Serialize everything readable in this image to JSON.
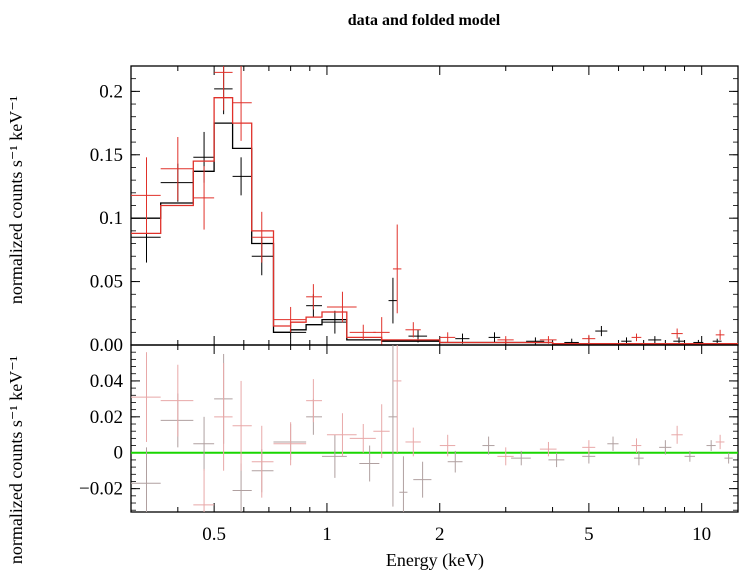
{
  "chart_data": {
    "type": "scatter",
    "title": "data and folded model",
    "xlabel": "Energy (keV)",
    "xscale": "log",
    "xlim": [
      0.3,
      12.5
    ],
    "x_ticks": [
      0.5,
      1,
      2,
      5,
      10
    ],
    "x_tick_labels": [
      "0.5",
      "1",
      "2",
      "5",
      "10"
    ],
    "top_panel": {
      "ylabel": "normalized counts s⁻¹ keV⁻¹",
      "ylim": [
        0,
        0.22
      ],
      "y_ticks": [
        0,
        0.05,
        0.1,
        0.15,
        0.2
      ],
      "y_tick_labels": [
        "0.00",
        "0.05",
        "0.1",
        "0.15",
        "0.2"
      ],
      "series": [
        {
          "color": "#000000",
          "data": [
            {
              "x": 0.33,
              "xlo": 0.3,
              "xhi": 0.36,
              "y": 0.085,
              "yerr": 0.02
            },
            {
              "x": 0.4,
              "xlo": 0.36,
              "xhi": 0.44,
              "y": 0.128,
              "yerr": 0.015
            },
            {
              "x": 0.47,
              "xlo": 0.44,
              "xhi": 0.5,
              "y": 0.148,
              "yerr": 0.02
            },
            {
              "x": 0.53,
              "xlo": 0.5,
              "xhi": 0.56,
              "y": 0.202,
              "yerr": 0.02
            },
            {
              "x": 0.59,
              "xlo": 0.56,
              "xhi": 0.63,
              "y": 0.133,
              "yerr": 0.015
            },
            {
              "x": 0.67,
              "xlo": 0.63,
              "xhi": 0.72,
              "y": 0.07,
              "yerr": 0.015
            },
            {
              "x": 0.8,
              "xlo": 0.72,
              "xhi": 0.88,
              "y": 0.01,
              "yerr": 0.006
            },
            {
              "x": 0.92,
              "xlo": 0.88,
              "xhi": 0.97,
              "y": 0.031,
              "yerr": 0.009
            },
            {
              "x": 1.05,
              "xlo": 0.97,
              "xhi": 1.13,
              "y": 0.018,
              "yerr": 0.009
            },
            {
              "x": 1.5,
              "xlo": 1.46,
              "xhi": 1.54,
              "y": 0.035,
              "yerr": 0.018
            },
            {
              "x": 1.75,
              "xlo": 1.65,
              "xhi": 1.85,
              "y": 0.007,
              "yerr": 0.005
            },
            {
              "x": 2.3,
              "xlo": 2.2,
              "xhi": 2.4,
              "y": 0.005,
              "yerr": 0.004
            },
            {
              "x": 2.8,
              "xlo": 2.7,
              "xhi": 2.9,
              "y": 0.006,
              "yerr": 0.004
            },
            {
              "x": 3.6,
              "xlo": 3.4,
              "xhi": 3.8,
              "y": 0.003,
              "yerr": 0.003
            },
            {
              "x": 4.5,
              "xlo": 4.3,
              "xhi": 4.7,
              "y": 0.002,
              "yerr": 0.003
            },
            {
              "x": 5.4,
              "xlo": 5.2,
              "xhi": 5.6,
              "y": 0.011,
              "yerr": 0.004
            },
            {
              "x": 6.3,
              "xlo": 6.1,
              "xhi": 6.5,
              "y": 0.003,
              "yerr": 0.003
            },
            {
              "x": 7.5,
              "xlo": 7.2,
              "xhi": 7.8,
              "y": 0.004,
              "yerr": 0.003
            },
            {
              "x": 8.7,
              "xlo": 8.4,
              "xhi": 9.0,
              "y": 0.003,
              "yerr": 0.003
            },
            {
              "x": 9.8,
              "xlo": 9.5,
              "xhi": 10.1,
              "y": 0.002,
              "yerr": 0.002
            },
            {
              "x": 11.0,
              "xlo": 10.7,
              "xhi": 11.3,
              "y": 0.003,
              "yerr": 0.002
            }
          ],
          "model": [
            [
              0.3,
              0.36,
              0.1
            ],
            [
              0.36,
              0.44,
              0.112
            ],
            [
              0.44,
              0.5,
              0.137
            ],
            [
              0.5,
              0.56,
              0.175
            ],
            [
              0.56,
              0.63,
              0.155
            ],
            [
              0.63,
              0.72,
              0.08
            ],
            [
              0.72,
              0.8,
              0.01
            ],
            [
              0.8,
              0.88,
              0.012
            ],
            [
              0.88,
              0.97,
              0.016
            ],
            [
              0.97,
              1.13,
              0.02
            ],
            [
              1.13,
              1.4,
              0.004
            ],
            [
              1.4,
              2.0,
              0.003
            ],
            [
              2.0,
              4.0,
              0.002
            ],
            [
              4.0,
              12.5,
              0.001
            ]
          ]
        },
        {
          "color": "#e0312a",
          "data": [
            {
              "x": 0.33,
              "xlo": 0.3,
              "xhi": 0.36,
              "y": 0.118,
              "yerr": 0.03
            },
            {
              "x": 0.4,
              "xlo": 0.36,
              "xhi": 0.44,
              "y": 0.139,
              "yerr": 0.025
            },
            {
              "x": 0.47,
              "xlo": 0.44,
              "xhi": 0.5,
              "y": 0.116,
              "yerr": 0.025
            },
            {
              "x": 0.53,
              "xlo": 0.5,
              "xhi": 0.56,
              "y": 0.215,
              "yerr": 0.03
            },
            {
              "x": 0.59,
              "xlo": 0.56,
              "xhi": 0.63,
              "y": 0.191,
              "yerr": 0.03
            },
            {
              "x": 0.67,
              "xlo": 0.63,
              "xhi": 0.72,
              "y": 0.085,
              "yerr": 0.02
            },
            {
              "x": 0.8,
              "xlo": 0.72,
              "xhi": 0.88,
              "y": 0.02,
              "yerr": 0.01
            },
            {
              "x": 0.92,
              "xlo": 0.88,
              "xhi": 0.97,
              "y": 0.038,
              "yerr": 0.01
            },
            {
              "x": 1.1,
              "xlo": 1.0,
              "xhi": 1.2,
              "y": 0.03,
              "yerr": 0.012
            },
            {
              "x": 1.25,
              "xlo": 1.15,
              "xhi": 1.35,
              "y": 0.01,
              "yerr": 0.006
            },
            {
              "x": 1.4,
              "xlo": 1.33,
              "xhi": 1.47,
              "y": 0.01,
              "yerr": 0.012
            },
            {
              "x": 1.54,
              "xlo": 1.5,
              "xhi": 1.58,
              "y": 0.06,
              "yerr": 0.035
            },
            {
              "x": 1.7,
              "xlo": 1.62,
              "xhi": 1.78,
              "y": 0.012,
              "yerr": 0.006
            },
            {
              "x": 2.1,
              "xlo": 2.0,
              "xhi": 2.2,
              "y": 0.006,
              "yerr": 0.004
            },
            {
              "x": 3.0,
              "xlo": 2.85,
              "xhi": 3.15,
              "y": 0.004,
              "yerr": 0.003
            },
            {
              "x": 3.9,
              "xlo": 3.7,
              "xhi": 4.1,
              "y": 0.004,
              "yerr": 0.003
            },
            {
              "x": 5.0,
              "xlo": 4.8,
              "xhi": 5.2,
              "y": 0.005,
              "yerr": 0.003
            },
            {
              "x": 6.7,
              "xlo": 6.5,
              "xhi": 6.9,
              "y": 0.006,
              "yerr": 0.003
            },
            {
              "x": 8.6,
              "xlo": 8.3,
              "xhi": 8.9,
              "y": 0.009,
              "yerr": 0.004
            },
            {
              "x": 11.2,
              "xlo": 10.9,
              "xhi": 11.5,
              "y": 0.008,
              "yerr": 0.004
            }
          ],
          "model": [
            [
              0.3,
              0.36,
              0.088
            ],
            [
              0.36,
              0.44,
              0.11
            ],
            [
              0.44,
              0.5,
              0.145
            ],
            [
              0.5,
              0.56,
              0.195
            ],
            [
              0.56,
              0.63,
              0.175
            ],
            [
              0.63,
              0.72,
              0.09
            ],
            [
              0.72,
              0.8,
              0.015
            ],
            [
              0.8,
              0.88,
              0.018
            ],
            [
              0.88,
              0.97,
              0.022
            ],
            [
              0.97,
              1.13,
              0.026
            ],
            [
              1.13,
              1.4,
              0.006
            ],
            [
              1.4,
              2.0,
              0.004
            ],
            [
              2.0,
              4.0,
              0.002
            ],
            [
              4.0,
              12.5,
              0.001
            ]
          ]
        }
      ]
    },
    "bottom_panel": {
      "ylabel": "normalized counts s⁻¹ keV⁻¹",
      "ylim": [
        -0.033,
        0.06
      ],
      "y_ticks": [
        -0.02,
        0,
        0.02,
        0.04
      ],
      "y_tick_labels": [
        "−0.02",
        "0",
        "0.02",
        "0.04"
      ],
      "zero_line_color": "#19d600",
      "series": [
        {
          "color": "#b0a0a0",
          "data": [
            {
              "x": 0.33,
              "xlo": 0.3,
              "xhi": 0.36,
              "y": -0.017,
              "yerr": 0.02
            },
            {
              "x": 0.4,
              "xlo": 0.36,
              "xhi": 0.44,
              "y": 0.018,
              "yerr": 0.015
            },
            {
              "x": 0.47,
              "xlo": 0.44,
              "xhi": 0.5,
              "y": 0.005,
              "yerr": 0.015
            },
            {
              "x": 0.53,
              "xlo": 0.5,
              "xhi": 0.56,
              "y": 0.03,
              "yerr": 0.025
            },
            {
              "x": 0.59,
              "xlo": 0.56,
              "xhi": 0.63,
              "y": -0.021,
              "yerr": 0.015
            },
            {
              "x": 0.67,
              "xlo": 0.63,
              "xhi": 0.72,
              "y": -0.01,
              "yerr": 0.012
            },
            {
              "x": 0.8,
              "xlo": 0.72,
              "xhi": 0.88,
              "y": 0.006,
              "yerr": 0.01
            },
            {
              "x": 0.92,
              "xlo": 0.88,
              "xhi": 0.97,
              "y": 0.02,
              "yerr": 0.01
            },
            {
              "x": 1.05,
              "xlo": 0.97,
              "xhi": 1.13,
              "y": -0.002,
              "yerr": 0.012
            },
            {
              "x": 1.3,
              "xlo": 1.22,
              "xhi": 1.38,
              "y": -0.006,
              "yerr": 0.01
            },
            {
              "x": 1.5,
              "xlo": 1.46,
              "xhi": 1.54,
              "y": 0.02,
              "yerr": 0.05
            },
            {
              "x": 1.6,
              "xlo": 1.56,
              "xhi": 1.64,
              "y": -0.022,
              "yerr": 0.02
            },
            {
              "x": 1.8,
              "xlo": 1.7,
              "xhi": 1.9,
              "y": -0.015,
              "yerr": 0.01
            },
            {
              "x": 2.2,
              "xlo": 2.1,
              "xhi": 2.3,
              "y": -0.005,
              "yerr": 0.006
            },
            {
              "x": 2.7,
              "xlo": 2.6,
              "xhi": 2.8,
              "y": 0.004,
              "yerr": 0.005
            },
            {
              "x": 3.3,
              "xlo": 3.1,
              "xhi": 3.5,
              "y": -0.003,
              "yerr": 0.004
            },
            {
              "x": 4.1,
              "xlo": 3.9,
              "xhi": 4.3,
              "y": -0.004,
              "yerr": 0.004
            },
            {
              "x": 5.0,
              "xlo": 4.8,
              "xhi": 5.2,
              "y": -0.002,
              "yerr": 0.004
            },
            {
              "x": 5.8,
              "xlo": 5.6,
              "xhi": 6.0,
              "y": 0.005,
              "yerr": 0.004
            },
            {
              "x": 6.8,
              "xlo": 6.6,
              "xhi": 7.0,
              "y": -0.003,
              "yerr": 0.004
            },
            {
              "x": 8.0,
              "xlo": 7.7,
              "xhi": 8.3,
              "y": 0.003,
              "yerr": 0.004
            },
            {
              "x": 9.3,
              "xlo": 9.0,
              "xhi": 9.6,
              "y": -0.002,
              "yerr": 0.003
            },
            {
              "x": 10.6,
              "xlo": 10.3,
              "xhi": 10.9,
              "y": 0.004,
              "yerr": 0.003
            },
            {
              "x": 11.8,
              "xlo": 11.5,
              "xhi": 12.1,
              "y": -0.003,
              "yerr": 0.003
            }
          ]
        },
        {
          "color": "#e8a8a8",
          "data": [
            {
              "x": 0.33,
              "xlo": 0.3,
              "xhi": 0.36,
              "y": 0.031,
              "yerr": 0.025
            },
            {
              "x": 0.4,
              "xlo": 0.36,
              "xhi": 0.44,
              "y": 0.029,
              "yerr": 0.02
            },
            {
              "x": 0.47,
              "xlo": 0.44,
              "xhi": 0.5,
              "y": -0.029,
              "yerr": 0.02
            },
            {
              "x": 0.53,
              "xlo": 0.5,
              "xhi": 0.56,
              "y": 0.02,
              "yerr": 0.03
            },
            {
              "x": 0.59,
              "xlo": 0.56,
              "xhi": 0.63,
              "y": 0.015,
              "yerr": 0.025
            },
            {
              "x": 0.67,
              "xlo": 0.63,
              "xhi": 0.72,
              "y": -0.005,
              "yerr": 0.02
            },
            {
              "x": 0.8,
              "xlo": 0.72,
              "xhi": 0.88,
              "y": 0.005,
              "yerr": 0.012
            },
            {
              "x": 0.92,
              "xlo": 0.88,
              "xhi": 0.97,
              "y": 0.029,
              "yerr": 0.012
            },
            {
              "x": 1.1,
              "xlo": 1.0,
              "xhi": 1.2,
              "y": 0.01,
              "yerr": 0.012
            },
            {
              "x": 1.25,
              "xlo": 1.15,
              "xhi": 1.35,
              "y": 0.008,
              "yerr": 0.008
            },
            {
              "x": 1.4,
              "xlo": 1.33,
              "xhi": 1.47,
              "y": 0.012,
              "yerr": 0.015
            },
            {
              "x": 1.54,
              "xlo": 1.5,
              "xhi": 1.58,
              "y": 0.04,
              "yerr": 0.04
            },
            {
              "x": 1.7,
              "xlo": 1.62,
              "xhi": 1.78,
              "y": 0.006,
              "yerr": 0.008
            },
            {
              "x": 2.1,
              "xlo": 2.0,
              "xhi": 2.2,
              "y": 0.004,
              "yerr": 0.006
            },
            {
              "x": 3.0,
              "xlo": 2.85,
              "xhi": 3.15,
              "y": -0.002,
              "yerr": 0.005
            },
            {
              "x": 3.9,
              "xlo": 3.7,
              "xhi": 4.1,
              "y": 0.002,
              "yerr": 0.004
            },
            {
              "x": 5.0,
              "xlo": 4.8,
              "xhi": 5.2,
              "y": 0.003,
              "yerr": 0.004
            },
            {
              "x": 6.7,
              "xlo": 6.5,
              "xhi": 6.9,
              "y": 0.004,
              "yerr": 0.004
            },
            {
              "x": 8.6,
              "xlo": 8.3,
              "xhi": 8.9,
              "y": 0.01,
              "yerr": 0.005
            },
            {
              "x": 11.2,
              "xlo": 10.9,
              "xhi": 11.5,
              "y": 0.006,
              "yerr": 0.004
            }
          ]
        }
      ]
    }
  }
}
